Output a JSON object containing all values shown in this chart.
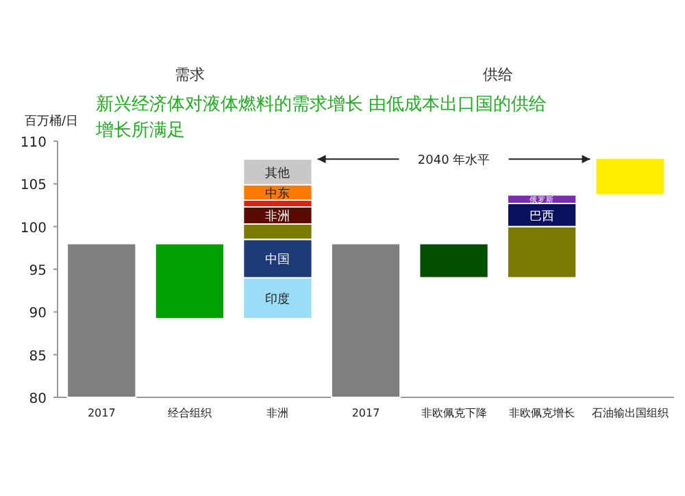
{
  "chart_data": {
    "type": "bar",
    "title": "新兴经济体对液体燃料的需求增长 由低成本出口国的供给增长所满足",
    "ylabel": "百万桶/日",
    "categories": [
      "2017",
      "经合组织",
      "非洲",
      "2017",
      "非欧佩克下降",
      "非欧佩克增长",
      "石油输出国组织"
    ],
    "series": [
      {
        "base": [
          80,
          89.2,
          89.2,
          80,
          94,
          94,
          103.7
        ],
        "values": [
          18,
          8.8,
          4.8,
          18,
          4,
          6,
          4.3
        ],
        "colors": [
          "#7f7f7f",
          "#00a000",
          "#99ddf8",
          "#7f7f7f",
          "#005000",
          "#7a7a00",
          "#ffee00"
        ],
        "value_labels": [
          null,
          null,
          "印度",
          null,
          null,
          null,
          null
        ]
      },
      {
        "base": [
          null,
          null,
          94,
          null,
          null,
          100,
          null
        ],
        "values": [
          null,
          null,
          4.5,
          null,
          null,
          2.7,
          null
        ],
        "colors": [
          null,
          null,
          "#1f3a78",
          null,
          null,
          "#0a1060",
          null
        ],
        "value_labels": [
          null,
          null,
          "中国",
          null,
          null,
          "巴西",
          null
        ]
      },
      {
        "base": [
          null,
          null,
          98.5,
          null,
          null,
          102.7,
          null
        ],
        "values": [
          null,
          null,
          1.8,
          null,
          null,
          1.0,
          null
        ],
        "colors": [
          null,
          null,
          "#7a7a00",
          null,
          null,
          "#7b2fb0",
          null
        ],
        "value_labels": [
          null,
          null,
          null,
          null,
          null,
          "俄罗斯",
          null
        ]
      },
      {
        "base": [
          null,
          null,
          100.3,
          null,
          null,
          null,
          null
        ],
        "values": [
          null,
          null,
          2.0,
          null,
          null,
          null,
          null
        ],
        "colors": [
          null,
          null,
          "#5a0a00",
          null,
          null,
          null,
          null
        ],
        "value_labels": [
          null,
          null,
          "非洲",
          null,
          null,
          null,
          null
        ]
      },
      {
        "base": [
          null,
          null,
          102.3,
          null,
          null,
          null,
          null
        ],
        "values": [
          null,
          null,
          0.8,
          null,
          null,
          null,
          null
        ],
        "colors": [
          null,
          null,
          "#e02010",
          null,
          null,
          null,
          null
        ],
        "value_labels": [
          null,
          null,
          null,
          null,
          null,
          null,
          null
        ]
      },
      {
        "base": [
          null,
          null,
          103.1,
          null,
          null,
          null,
          null
        ],
        "values": [
          null,
          null,
          1.8,
          null,
          null,
          null,
          null
        ],
        "colors": [
          null,
          null,
          "#ff7a00",
          null,
          null,
          null,
          null
        ],
        "value_labels": [
          null,
          null,
          "中东",
          null,
          null,
          null,
          null
        ]
      },
      {
        "base": [
          null,
          null,
          104.9,
          null,
          null,
          null,
          null
        ],
        "values": [
          null,
          null,
          3.0,
          null,
          null,
          null,
          null
        ],
        "colors": [
          null,
          null,
          "#c8c8c8",
          null,
          null,
          null,
          null
        ],
        "value_labels": [
          null,
          null,
          "其他",
          null,
          null,
          null,
          null
        ]
      }
    ],
    "ref_lines": [
      {
        "axis": "y",
        "value": 107.9,
        "label": "2040 年水平"
      }
    ],
    "annotations": [
      "需求",
      "供给"
    ],
    "ylim": [
      80,
      110
    ],
    "yticks": [
      80,
      85,
      90,
      95,
      100,
      105,
      110
    ],
    "grid": false
  }
}
